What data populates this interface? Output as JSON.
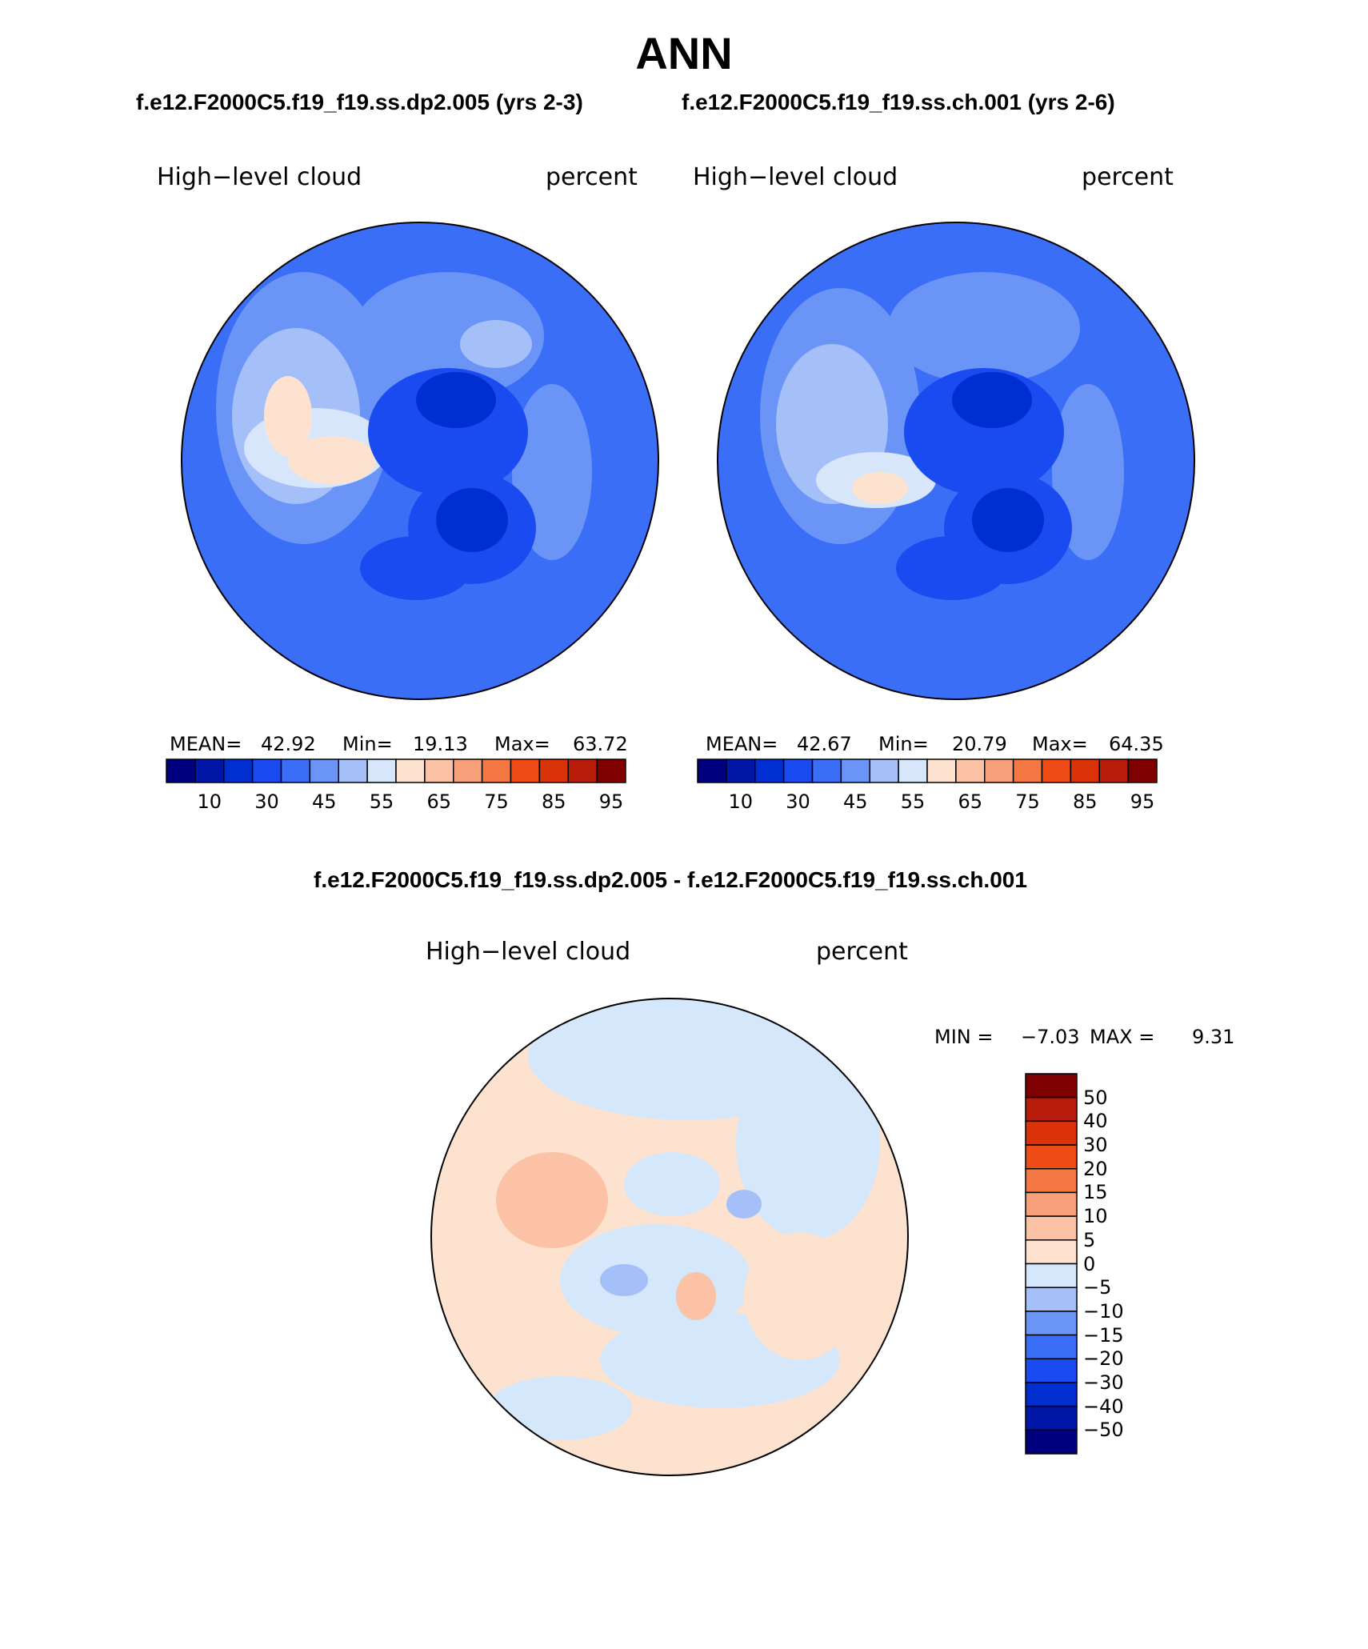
{
  "page_title": "ANN",
  "subtitle_left": "f.e12.F2000C5.f19_f19.ss.dp2.005 (yrs 2-3)",
  "subtitle_right": "f.e12.F2000C5.f19_f19.ss.ch.001 (yrs 2-6)",
  "diff_title": "f.e12.F2000C5.f19_f19.ss.dp2.005 - f.e12.F2000C5.f19_f19.ss.ch.001",
  "colors": {
    "main_scale": [
      "#00007f",
      "#0016a6",
      "#002ed0",
      "#1a4bf0",
      "#3b6ef7",
      "#6b94f7",
      "#a5bff8",
      "#d8e6fb",
      "#fde3cf",
      "#fbc2a5",
      "#f7a07a",
      "#f47843",
      "#ef4c18",
      "#db3309",
      "#b71c0a",
      "#7e0000"
    ],
    "diff_scale": [
      "#00007f",
      "#0016a6",
      "#002ed0",
      "#1a4bf0",
      "#3b6ef7",
      "#6b94f7",
      "#a5bff8",
      "#d5e7fb",
      "#fde3cf",
      "#fbc2a5",
      "#f7a07a",
      "#f47843",
      "#ef4c18",
      "#db3309",
      "#b71c0a",
      "#7e0000"
    ]
  },
  "chart_data": [
    {
      "type": "heatmap",
      "panel": "left",
      "projection": "south polar stereographic",
      "title": "High−level cloud",
      "units": "percent",
      "stats": {
        "mean_label": "MEAN=",
        "mean": "42.92",
        "min_label": "Min=",
        "min": "19.13",
        "max_label": "Max=",
        "max": "63.72"
      },
      "colorbar_levels": [
        5,
        10,
        20,
        30,
        35,
        45,
        50,
        55,
        60,
        65,
        70,
        75,
        80,
        85,
        90,
        95
      ],
      "colorbar_tick_labels": [
        "10",
        "30",
        "45",
        "55",
        "65",
        "75",
        "85",
        "95"
      ]
    },
    {
      "type": "heatmap",
      "panel": "right",
      "projection": "south polar stereographic",
      "title": "High−level cloud",
      "units": "percent",
      "stats": {
        "mean_label": "MEAN=",
        "mean": "42.67",
        "min_label": "Min=",
        "min": "20.79",
        "max_label": "Max=",
        "max": "64.35"
      },
      "colorbar_levels": [
        5,
        10,
        20,
        30,
        35,
        45,
        50,
        55,
        60,
        65,
        70,
        75,
        80,
        85,
        90,
        95
      ],
      "colorbar_tick_labels": [
        "10",
        "30",
        "45",
        "55",
        "65",
        "75",
        "85",
        "95"
      ]
    },
    {
      "type": "heatmap",
      "panel": "difference",
      "projection": "south polar stereographic",
      "title": "High−level cloud",
      "units": "percent",
      "stats": {
        "min_label": "MIN =",
        "min": "−7.03",
        "max_label": "MAX =",
        "max": "9.31"
      },
      "colorbar_tick_labels": [
        "50",
        "40",
        "30",
        "20",
        "15",
        "10",
        "5",
        "0",
        "−5",
        "−10",
        "−15",
        "−20",
        "−30",
        "−40",
        "−50"
      ]
    }
  ]
}
